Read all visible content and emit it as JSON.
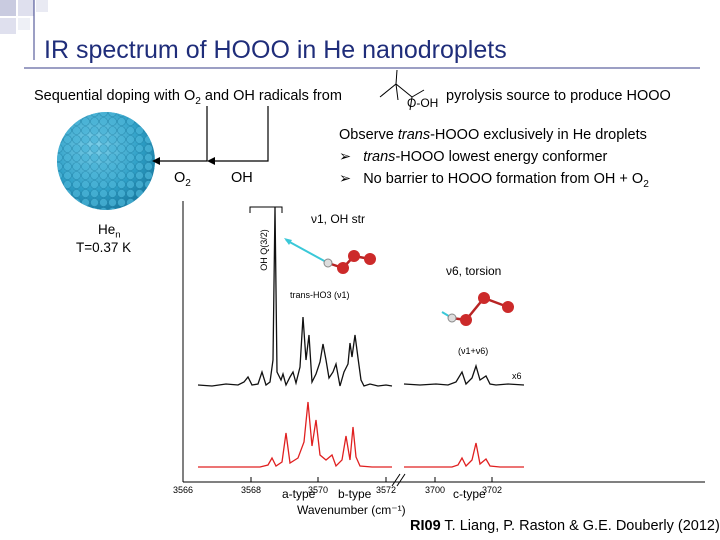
{
  "slide": {
    "title": "IR spectrum of HOOO in He nanodroplets",
    "doping_prefix": "Sequential doping with O",
    "doping_sub": "2",
    "doping_suffix": " and OH radicals from",
    "pyrolysis_text": "pyrolysis source to produce HOOO",
    "precursor_label": "O-OH",
    "label_o2_main": "O",
    "label_o2_sub": "2",
    "label_oh": "OH",
    "droplet_main": "He",
    "droplet_sub": "n",
    "droplet_temp": "T=0.37 K",
    "observe_prefix": "Observe ",
    "observe_italic": "trans",
    "observe_suffix": "-HOOO exclusively in He droplets",
    "bullet1_italic": "trans",
    "bullet1_suffix": "-HOOO lowest energy conformer",
    "bullet2_prefix": "No barrier to HOOO formation from OH + O",
    "bullet2_sub": "2",
    "citation_bold": "RI09",
    "citation_rest": " T. Liang, P. Raston & G.E. Douberly (2012)"
  },
  "figure": {
    "line_label_oh": "OH Q(3/2)",
    "label_v1": "ν1, OH str",
    "label_trans_ho3": "trans-HO3 (ν1)",
    "label_v6": "ν6, torsion",
    "label_combo": "(ν1+ν6)",
    "label_x6": "x6",
    "label_atype": "a-type",
    "label_btype": "b-type",
    "label_ctype": "c-type",
    "xlabel": "Wavenumber (cm⁻¹)",
    "ticks": [
      "3566",
      "3568",
      "3570",
      "3572",
      "3700",
      "3702"
    ]
  },
  "colors": {
    "title": "#1f2d7a",
    "molecule": "#cc2a2a",
    "sim_trace": "#e02020",
    "droplet": "#3aa8cc"
  }
}
